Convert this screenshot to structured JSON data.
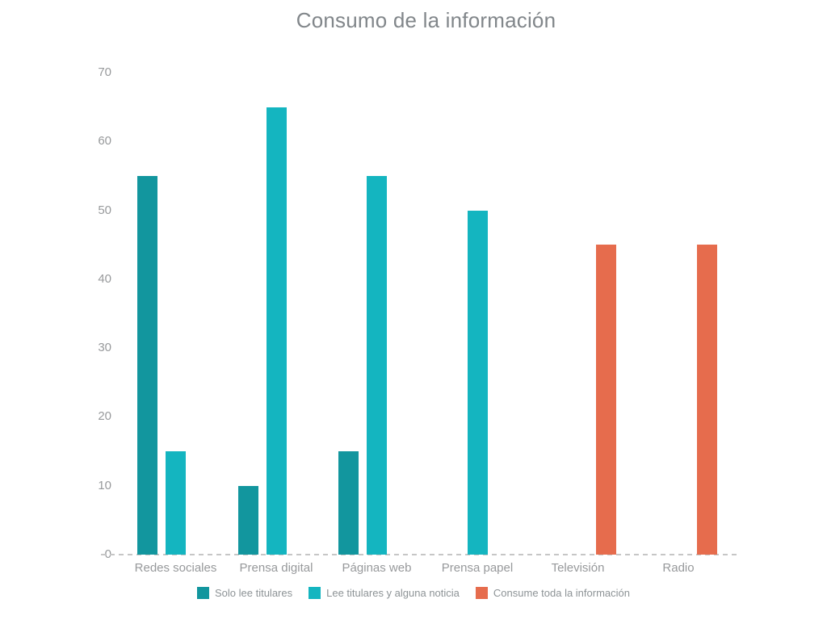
{
  "chart_data": {
    "type": "bar",
    "title": "Consumo de la información",
    "categories": [
      "Redes sociales",
      "Prensa digital",
      "Páginas web",
      "Prensa papel",
      "Televisión",
      "Radio"
    ],
    "series": [
      {
        "name": "Solo lee titulares",
        "color": "#12969E",
        "values": [
          55,
          10,
          15,
          null,
          null,
          null
        ]
      },
      {
        "name": "Lee titulares y alguna noticia",
        "color": "#14B5C0",
        "values": [
          15,
          65,
          55,
          50,
          null,
          null
        ]
      },
      {
        "name": "Consume toda la información",
        "color": "#E66C4D",
        "values": [
          null,
          null,
          null,
          null,
          45,
          45
        ]
      }
    ],
    "y_axis": {
      "min": 0,
      "max": 70,
      "tick_interval": 10,
      "ticks": [
        0,
        10,
        20,
        30,
        40,
        50,
        60,
        70
      ]
    },
    "xlabel": "",
    "ylabel": "",
    "grid": "off",
    "legend_position": "bottom",
    "zero_line_style": "dashed"
  },
  "colors": {
    "background": "#ffffff",
    "title_text": "#81868A",
    "axis_text": "#97999B",
    "legend_text": "#8D9396",
    "zero_line": "#c6c6c6"
  }
}
